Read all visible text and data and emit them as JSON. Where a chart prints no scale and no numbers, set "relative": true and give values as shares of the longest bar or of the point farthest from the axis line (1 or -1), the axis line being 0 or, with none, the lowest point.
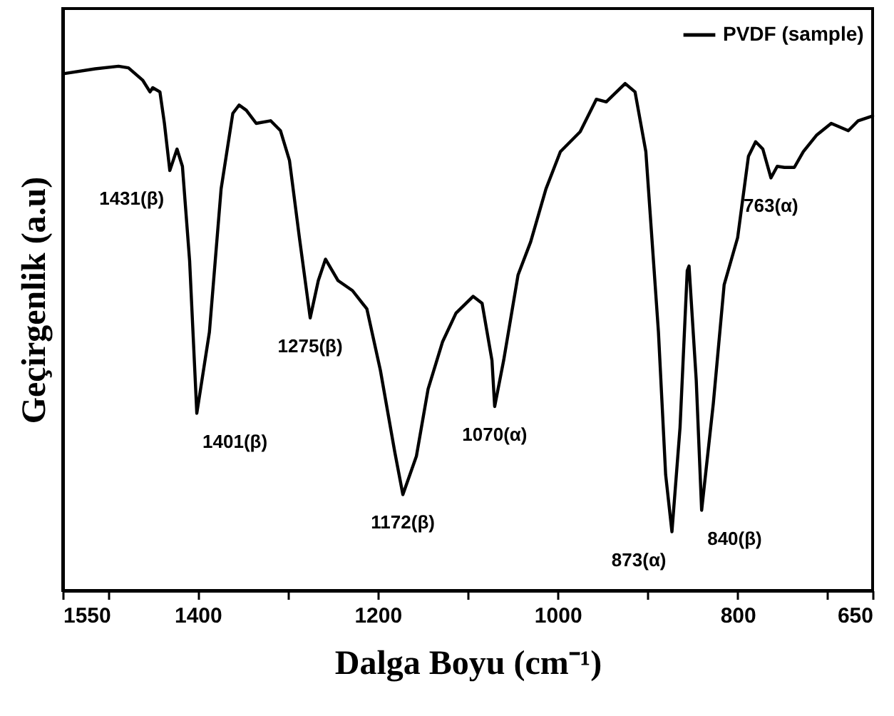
{
  "chart_data": {
    "type": "line",
    "relative": true,
    "xlabel": "Dalga Boyu (cm⁻¹)",
    "ylabel": "Geçirgenlik (a.u)",
    "xlim": [
      1550,
      650
    ],
    "xticks": [
      1550,
      {
        "value": 1500,
        "label": null
      },
      1400,
      {
        "value": 1300,
        "label": null
      },
      1200,
      {
        "value": 1100,
        "label": null
      },
      1000,
      {
        "value": 900,
        "label": null
      },
      800,
      {
        "value": 700,
        "label": null
      },
      650
    ],
    "x": [
      1548,
      1514,
      1488,
      1477,
      1461,
      1453,
      1450,
      1442,
      1437,
      1431,
      1423,
      1417,
      1409,
      1401,
      1387,
      1374,
      1361,
      1354,
      1346,
      1335,
      1319,
      1308,
      1298,
      1287,
      1275,
      1266,
      1258,
      1244,
      1228,
      1212,
      1197,
      1181,
      1172,
      1157,
      1144,
      1128,
      1113,
      1094,
      1084,
      1073,
      1070,
      1060,
      1044,
      1030,
      1013,
      997,
      975,
      957,
      946,
      925,
      914,
      902,
      888,
      880,
      873,
      864,
      856,
      854,
      846,
      840,
      827,
      815,
      800,
      788,
      780,
      772,
      763,
      756,
      748,
      737,
      727,
      712,
      696,
      677,
      666,
      650
    ],
    "series": [
      {
        "name": "PVDF (sample)",
        "color": "#000000",
        "values": [
          0.986,
          0.995,
          1,
          0.997,
          0.973,
          0.951,
          0.959,
          0.951,
          0.891,
          0.801,
          0.842,
          0.809,
          0.629,
          0.338,
          0.493,
          0.766,
          0.91,
          0.926,
          0.916,
          0.891,
          0.896,
          0.877,
          0.82,
          0.673,
          0.52,
          0.591,
          0.632,
          0.591,
          0.572,
          0.537,
          0.42,
          0.264,
          0.183,
          0.256,
          0.384,
          0.474,
          0.529,
          0.561,
          0.548,
          0.439,
          0.351,
          0.439,
          0.602,
          0.665,
          0.766,
          0.837,
          0.875,
          0.937,
          0.932,
          0.967,
          0.951,
          0.837,
          0.493,
          0.221,
          0.112,
          0.311,
          0.61,
          0.619,
          0.401,
          0.153,
          0.357,
          0.583,
          0.673,
          0.828,
          0.856,
          0.842,
          0.787,
          0.809,
          0.807,
          0.807,
          0.837,
          0.869,
          0.891,
          0.877,
          0.896,
          0.905
        ]
      }
    ],
    "annotations": [
      {
        "text": "1431(β)",
        "x": 1431,
        "y": 0.801
      },
      {
        "text": "1401(β)",
        "x": 1401,
        "y": 0.338
      },
      {
        "text": "1275(β)",
        "x": 1275,
        "y": 0.52
      },
      {
        "text": "1172(β)",
        "x": 1172,
        "y": 0.183
      },
      {
        "text": "1070(α)",
        "x": 1070,
        "y": 0.351
      },
      {
        "text": "873(α)",
        "x": 873,
        "y": 0.112
      },
      {
        "text": "840(β)",
        "x": 840,
        "y": 0.153
      },
      {
        "text": "763(α)",
        "x": 763,
        "y": 0.787
      }
    ],
    "legend": "top right",
    "line_style": "solid",
    "grid": false
  }
}
